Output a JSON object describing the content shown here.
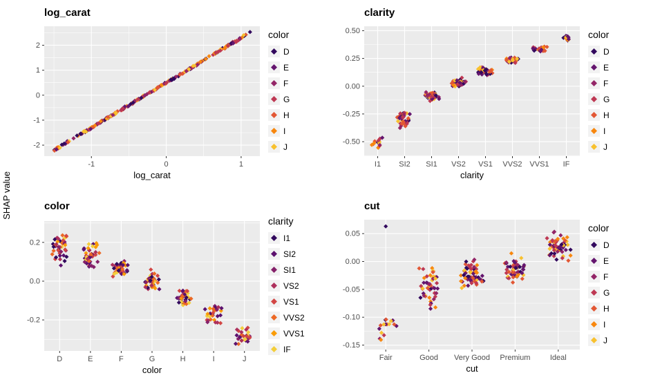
{
  "figure": {
    "ylabel": "SHAP value",
    "background": "#FFFFFF"
  },
  "theme": {
    "panel_bg": "#EBEBEB",
    "grid_color": "#FFFFFF",
    "tick_text_color": "#4D4D4D",
    "axis_title_color": "#000000",
    "legend_key_bg": "#F2F2F2",
    "point_shape": "diamond"
  },
  "palettes": {
    "color": {
      "labels": [
        "D",
        "E",
        "F",
        "G",
        "H",
        "I",
        "J"
      ],
      "colors": [
        "#32095D",
        "#64156E",
        "#932567",
        "#BE3853",
        "#E25734",
        "#F8870E",
        "#F8C12F"
      ]
    },
    "clarity": {
      "labels": [
        "I1",
        "SI2",
        "SI1",
        "VS2",
        "VS1",
        "VVS2",
        "VVS1",
        "IF"
      ],
      "colors": [
        "#32095D",
        "#5C116E",
        "#85216A",
        "#AD305C",
        "#D24644",
        "#EC6925",
        "#FA9C07",
        "#F3CE3B"
      ]
    }
  },
  "chart_data": [
    {
      "type": "scatter",
      "title": "log_carat",
      "xlabel": "log_carat",
      "ylabel": "SHAP value",
      "legend": {
        "title": "color",
        "palette": "color",
        "position": "right"
      },
      "x": {
        "type": "numeric",
        "domain": [
          -1.63,
          1.25
        ],
        "majors": [
          {
            "v": -1,
            "label": "-1"
          },
          {
            "v": 0,
            "label": "0"
          },
          {
            "v": 1,
            "label": "1"
          }
        ],
        "minors": [
          -1.5,
          -0.5,
          0.5
        ]
      },
      "y": {
        "domain": [
          -2.44,
          2.76
        ],
        "majors": [
          {
            "v": -2,
            "label": "-2"
          },
          {
            "v": -1,
            "label": "-1"
          },
          {
            "v": 0,
            "label": "0"
          },
          {
            "v": 1,
            "label": "1"
          },
          {
            "v": 2,
            "label": "2"
          }
        ],
        "minors": [
          -1.5,
          -0.5,
          0.5,
          1.5,
          2.5
        ]
      },
      "points": {
        "mode": "line",
        "relation": "SHAP value rises linearly: y ~= 1.8 * log_carat + 0.5",
        "slope": 1.8,
        "intercept": 0.5,
        "x_min": -1.5,
        "x_max": 1.12,
        "noise": 0.05,
        "count": 260
      }
    },
    {
      "type": "scatter",
      "title": "clarity",
      "xlabel": "clarity",
      "ylabel": "SHAP value",
      "legend": {
        "title": "color",
        "palette": "color",
        "position": "right"
      },
      "x": {
        "type": "categorical",
        "categories": [
          "I1",
          "SI2",
          "SI1",
          "VS2",
          "VS1",
          "VVS2",
          "VVS1",
          "IF"
        ]
      },
      "y": {
        "domain": [
          -0.63,
          0.54
        ],
        "majors": [
          {
            "v": -0.5,
            "label": "-0.50"
          },
          {
            "v": -0.25,
            "label": "-0.25"
          },
          {
            "v": 0,
            "label": "0.00"
          },
          {
            "v": 0.25,
            "label": "0.25"
          },
          {
            "v": 0.5,
            "label": "0.50"
          }
        ],
        "minors": [
          -0.625,
          -0.375,
          -0.125,
          0.125,
          0.375
        ]
      },
      "points": {
        "mode": "groups",
        "groups": [
          {
            "category": "I1",
            "center": -0.5,
            "half_range": 0.075,
            "n": 13
          },
          {
            "category": "SI2",
            "center": -0.3,
            "half_range": 0.08,
            "n": 42
          },
          {
            "category": "SI1",
            "center": -0.09,
            "half_range": 0.045,
            "n": 55
          },
          {
            "category": "VS2",
            "center": 0.03,
            "half_range": 0.05,
            "n": 58
          },
          {
            "category": "VS1",
            "center": 0.135,
            "half_range": 0.04,
            "n": 40
          },
          {
            "category": "VVS2",
            "center": 0.235,
            "half_range": 0.035,
            "n": 28
          },
          {
            "category": "VVS1",
            "center": 0.335,
            "half_range": 0.035,
            "n": 22
          },
          {
            "category": "IF",
            "center": 0.44,
            "half_range": 0.035,
            "n": 12
          }
        ]
      }
    },
    {
      "type": "scatter",
      "title": "color",
      "xlabel": "color",
      "ylabel": "SHAP value",
      "legend": {
        "title": "clarity",
        "palette": "clarity",
        "position": "right"
      },
      "x": {
        "type": "categorical",
        "categories": [
          "D",
          "E",
          "F",
          "G",
          "H",
          "I",
          "J"
        ]
      },
      "y": {
        "domain": [
          -0.36,
          0.31
        ],
        "majors": [
          {
            "v": -0.2,
            "label": "-0.2"
          },
          {
            "v": 0,
            "label": "0.0"
          },
          {
            "v": 0.2,
            "label": "0.2"
          }
        ],
        "minors": [
          -0.3,
          -0.1,
          0.1,
          0.3
        ]
      },
      "points": {
        "mode": "groups",
        "groups": [
          {
            "category": "D",
            "center": 0.17,
            "half_range": 0.1,
            "n": 42
          },
          {
            "category": "E",
            "center": 0.125,
            "half_range": 0.075,
            "n": 45
          },
          {
            "category": "F",
            "center": 0.07,
            "half_range": 0.05,
            "n": 40
          },
          {
            "category": "G",
            "center": 0.005,
            "half_range": 0.055,
            "n": 45
          },
          {
            "category": "H",
            "center": -0.08,
            "half_range": 0.05,
            "n": 36
          },
          {
            "category": "I",
            "center": -0.175,
            "half_range": 0.055,
            "n": 30
          },
          {
            "category": "J",
            "center": -0.275,
            "half_range": 0.055,
            "n": 30
          }
        ]
      }
    },
    {
      "type": "scatter",
      "title": "cut",
      "xlabel": "cut",
      "ylabel": "SHAP value",
      "legend": {
        "title": "color",
        "palette": "color",
        "position": "right"
      },
      "x": {
        "type": "categorical",
        "categories": [
          "Fair",
          "Good",
          "Very Good",
          "Premium",
          "Ideal"
        ]
      },
      "y": {
        "domain": [
          -0.158,
          0.075
        ],
        "majors": [
          {
            "v": -0.15,
            "label": "-0.15"
          },
          {
            "v": -0.1,
            "label": "-0.10"
          },
          {
            "v": -0.05,
            "label": "-0.05"
          },
          {
            "v": 0,
            "label": "0.00"
          },
          {
            "v": 0.05,
            "label": "0.05"
          }
        ],
        "minors": [
          -0.125,
          -0.075,
          -0.025,
          0.025
        ]
      },
      "points": {
        "mode": "groups",
        "groups": [
          {
            "category": "Fair",
            "center": -0.112,
            "half_range": 0.04,
            "n": 16
          },
          {
            "category": "Good",
            "center": -0.045,
            "half_range": 0.043,
            "n": 50
          },
          {
            "category": "Very Good",
            "center": -0.022,
            "half_range": 0.028,
            "n": 65
          },
          {
            "category": "Premium",
            "center": -0.012,
            "half_range": 0.028,
            "n": 58
          },
          {
            "category": "Ideal",
            "center": 0.028,
            "half_range": 0.028,
            "n": 55
          }
        ],
        "extras": [
          {
            "category": "Fair",
            "ci": 0,
            "y": 0.063,
            "color_index": 0
          }
        ]
      }
    }
  ]
}
